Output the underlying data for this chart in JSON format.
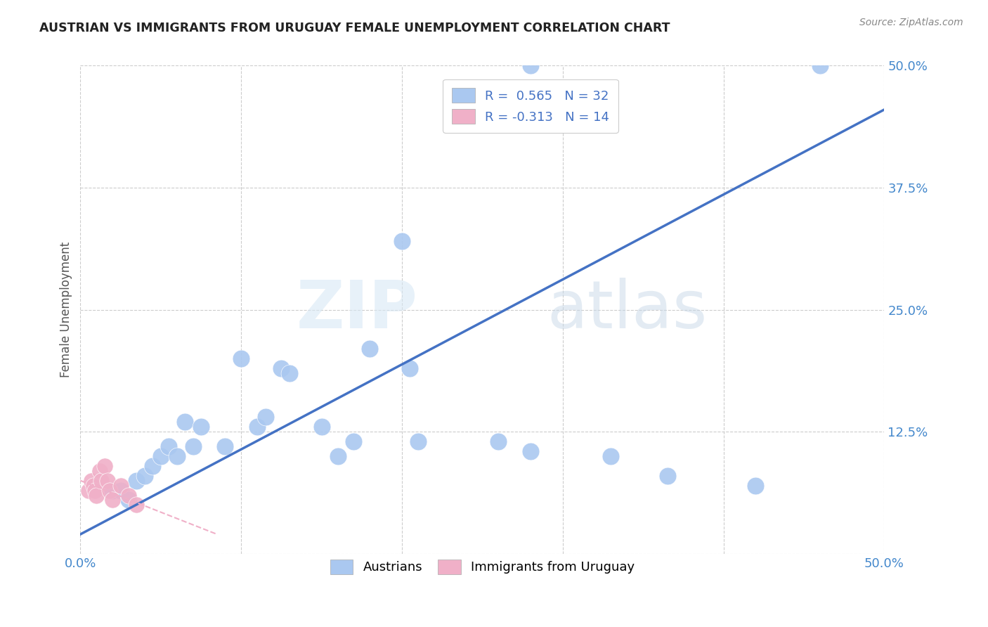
{
  "title": "AUSTRIAN VS IMMIGRANTS FROM URUGUAY FEMALE UNEMPLOYMENT CORRELATION CHART",
  "source": "Source: ZipAtlas.com",
  "ylabel": "Female Unemployment",
  "xlim": [
    0.0,
    0.5
  ],
  "ylim": [
    0.0,
    0.5
  ],
  "ytick_vals": [
    0.0,
    0.125,
    0.25,
    0.375,
    0.5
  ],
  "ytick_labels": [
    "",
    "12.5%",
    "25.0%",
    "37.5%",
    "50.0%"
  ],
  "xtick_vals": [
    0.0,
    0.5
  ],
  "xtick_labels": [
    "0.0%",
    "50.0%"
  ],
  "grid_color": "#cccccc",
  "background_color": "#ffffff",
  "watermark_zip": "ZIP",
  "watermark_atlas": "atlas",
  "legend_blue_label": "R =  0.565   N = 32",
  "legend_pink_label": "R = -0.313   N = 14",
  "blue_scatter_color": "#aac8f0",
  "pink_scatter_color": "#f0b0c8",
  "line_blue_color": "#4472c4",
  "line_pink_color": "#f0b0c8",
  "blue_line_x0": 0.0,
  "blue_line_y0": 0.02,
  "blue_line_x1": 0.5,
  "blue_line_y1": 0.455,
  "pink_line_x0": 0.0,
  "pink_line_y0": 0.075,
  "pink_line_x1": 0.085,
  "pink_line_y1": 0.02,
  "austrians_x": [
    0.28,
    0.46,
    0.02,
    0.025,
    0.03,
    0.035,
    0.04,
    0.045,
    0.05,
    0.055,
    0.06,
    0.065,
    0.07,
    0.075,
    0.09,
    0.1,
    0.11,
    0.115,
    0.125,
    0.13,
    0.15,
    0.16,
    0.17,
    0.18,
    0.2,
    0.205,
    0.21,
    0.26,
    0.28,
    0.33,
    0.365,
    0.42
  ],
  "austrians_y": [
    0.5,
    0.5,
    0.065,
    0.065,
    0.055,
    0.075,
    0.08,
    0.09,
    0.1,
    0.11,
    0.1,
    0.135,
    0.11,
    0.13,
    0.11,
    0.2,
    0.13,
    0.14,
    0.19,
    0.185,
    0.13,
    0.1,
    0.115,
    0.21,
    0.32,
    0.19,
    0.115,
    0.115,
    0.105,
    0.1,
    0.08,
    0.07
  ],
  "uruguay_x": [
    0.005,
    0.007,
    0.008,
    0.009,
    0.01,
    0.012,
    0.013,
    0.015,
    0.017,
    0.018,
    0.02,
    0.025,
    0.03,
    0.035
  ],
  "uruguay_y": [
    0.065,
    0.075,
    0.07,
    0.065,
    0.06,
    0.085,
    0.075,
    0.09,
    0.075,
    0.065,
    0.055,
    0.07,
    0.06,
    0.05
  ]
}
